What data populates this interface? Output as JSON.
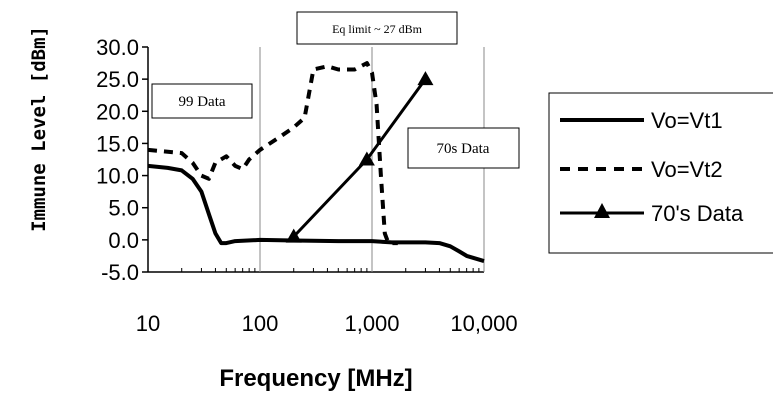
{
  "chart_data": {
    "type": "line",
    "xlabel": "Frequency [MHz]",
    "ylabel": "Immune Level  [dBm]",
    "x_scale": "log",
    "xlim": [
      10,
      10000
    ],
    "ylim": [
      -5,
      30
    ],
    "x_ticks": [
      "10",
      "100",
      "1,000",
      "10,000"
    ],
    "y_ticks": [
      "-5.0",
      "0.0",
      "5.0",
      "10.0",
      "15.0",
      "20.0",
      "25.0",
      "30.0"
    ],
    "grid": "vertical",
    "legend_position": "right",
    "annotations": {
      "eq_limit": "Eq limit ~ 27 dBm",
      "data_99": "99 Data",
      "data_70s": "70s Data"
    },
    "series": [
      {
        "name": "Vo=Vt1",
        "style": "solid",
        "points": [
          [
            10,
            11.5
          ],
          [
            15,
            11.2
          ],
          [
            20,
            10.8
          ],
          [
            25,
            9.5
          ],
          [
            30,
            7.5
          ],
          [
            35,
            4.0
          ],
          [
            40,
            1.0
          ],
          [
            45,
            -0.5
          ],
          [
            50,
            -0.5
          ],
          [
            60,
            -0.2
          ],
          [
            100,
            0
          ],
          [
            200,
            -0.1
          ],
          [
            500,
            -0.2
          ],
          [
            1000,
            -0.2
          ],
          [
            1500,
            -0.4
          ],
          [
            3000,
            -0.4
          ],
          [
            4000,
            -0.5
          ],
          [
            5000,
            -1.0
          ],
          [
            6000,
            -1.8
          ],
          [
            7000,
            -2.5
          ],
          [
            10000,
            -3.3
          ]
        ]
      },
      {
        "name": "Vo=Vt2",
        "style": "dashed",
        "points": [
          [
            10,
            14.0
          ],
          [
            20,
            13.5
          ],
          [
            25,
            12.0
          ],
          [
            30,
            10.0
          ],
          [
            35,
            9.5
          ],
          [
            40,
            12.0
          ],
          [
            50,
            13.0
          ],
          [
            60,
            11.5
          ],
          [
            70,
            11.0
          ],
          [
            80,
            12.5
          ],
          [
            100,
            14.0
          ],
          [
            150,
            16.0
          ],
          [
            200,
            17.5
          ],
          [
            250,
            19.0
          ],
          [
            300,
            26.5
          ],
          [
            400,
            27.0
          ],
          [
            500,
            26.5
          ],
          [
            700,
            26.5
          ],
          [
            900,
            27.5
          ],
          [
            1000,
            26.0
          ],
          [
            1100,
            21.0
          ],
          [
            1200,
            10.0
          ],
          [
            1300,
            1.0
          ],
          [
            1400,
            -0.5
          ],
          [
            1700,
            -0.5
          ]
        ]
      },
      {
        "name": "70's Data",
        "style": "solid-triangle",
        "points": [
          [
            200,
            0.5
          ],
          [
            900,
            12.5
          ],
          [
            3000,
            25.0
          ]
        ]
      }
    ]
  }
}
